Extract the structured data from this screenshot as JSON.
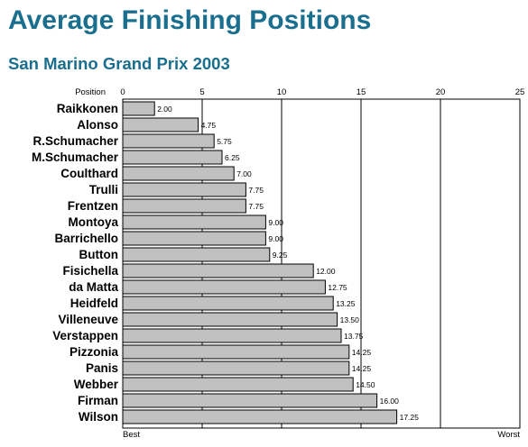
{
  "chart_data": {
    "type": "bar",
    "orientation": "horizontal",
    "title": "Average Finishing Positions",
    "subtitle": "San Marino Grand Prix 2003",
    "axis_label": "Position",
    "xlim": [
      0,
      25
    ],
    "x_ticks": [
      0,
      5,
      10,
      15,
      20,
      25
    ],
    "x_min_label": "Best",
    "x_max_label": "Worst",
    "grid": true,
    "bar_color": "#c0c0c0",
    "title_color": "#1a6e8e",
    "categories": [
      "Raikkonen",
      "Alonso",
      "R.Schumacher",
      "M.Schumacher",
      "Coulthard",
      "Trulli",
      "Frentzen",
      "Montoya",
      "Barrichello",
      "Button",
      "Fisichella",
      "da Matta",
      "Heidfeld",
      "Villeneuve",
      "Verstappen",
      "Pizzonia",
      "Panis",
      "Webber",
      "Firman",
      "Wilson"
    ],
    "values": [
      2.0,
      4.75,
      5.75,
      6.25,
      7.0,
      7.75,
      7.75,
      9.0,
      9.0,
      9.25,
      12.0,
      12.75,
      13.25,
      13.5,
      13.75,
      14.25,
      14.25,
      14.5,
      16.0,
      17.25
    ],
    "value_labels": [
      "2.00",
      "4.75",
      "5.75",
      "6.25",
      "7.00",
      "7.75",
      "7.75",
      "9.00",
      "9.00",
      "9.25",
      "12.00",
      "12.75",
      "13.25",
      "13.50",
      "13.75",
      "14.25",
      "14.25",
      "14.50",
      "16.00",
      "17.25"
    ]
  }
}
